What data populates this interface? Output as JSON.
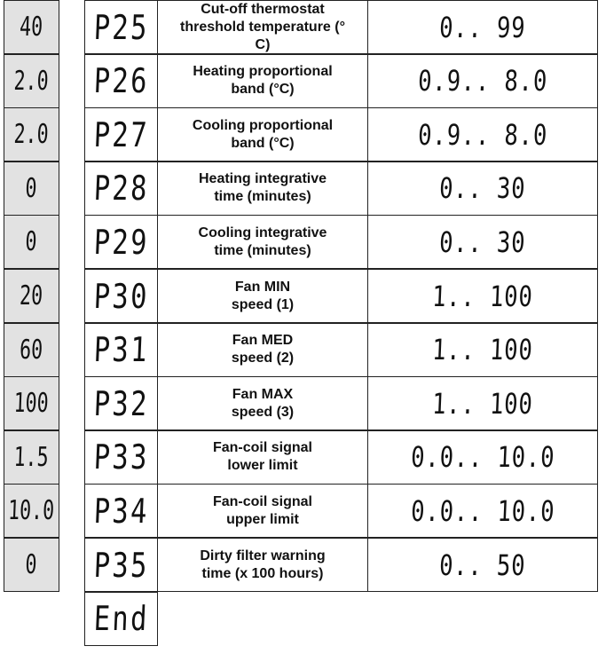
{
  "defaults": [
    "40",
    "2.0",
    "2.0",
    "0",
    "0",
    "20",
    "60",
    "100",
    "1.5",
    "10.0",
    "0"
  ],
  "rows": [
    {
      "code": "P25",
      "desc_l1": "Cut-off thermostat",
      "desc_l2": "threshold temperature (°",
      "desc_l3": "C)",
      "range": "0.. 99"
    },
    {
      "code": "P26",
      "desc_l1": "Heating proportional",
      "desc_l2": "band (°C)",
      "desc_l3": "",
      "range": "0.9.. 8.0"
    },
    {
      "code": "P27",
      "desc_l1": "Cooling proportional",
      "desc_l2": "band (°C)",
      "desc_l3": "",
      "range": "0.9.. 8.0"
    },
    {
      "code": "P28",
      "desc_l1": "Heating integrative",
      "desc_l2": "time (minutes)",
      "desc_l3": "",
      "range": "0.. 30"
    },
    {
      "code": "P29",
      "desc_l1": "Cooling integrative",
      "desc_l2": "time (minutes)",
      "desc_l3": "",
      "range": "0.. 30"
    },
    {
      "code": "P30",
      "desc_l1": "Fan MIN",
      "desc_l2": "speed (1)",
      "desc_l3": "",
      "range": "1.. 100"
    },
    {
      "code": "P31",
      "desc_l1": "Fan MED",
      "desc_l2": "speed (2)",
      "desc_l3": "",
      "range": "1.. 100"
    },
    {
      "code": "P32",
      "desc_l1": "Fan MAX",
      "desc_l2": "speed (3)",
      "desc_l3": "",
      "range": "1.. 100"
    },
    {
      "code": "P33",
      "desc_l1": "Fan-coil signal",
      "desc_l2": "lower limit",
      "desc_l3": "",
      "range": "0.0.. 10.0"
    },
    {
      "code": "P34",
      "desc_l1": "Fan-coil signal",
      "desc_l2": "upper limit",
      "desc_l3": "",
      "range": "0.0.. 10.0"
    },
    {
      "code": "P35",
      "desc_l1": "Dirty filter warning",
      "desc_l2": "time (x 100 hours)",
      "desc_l3": "",
      "range": "0.. 50"
    }
  ],
  "end_label": "End"
}
